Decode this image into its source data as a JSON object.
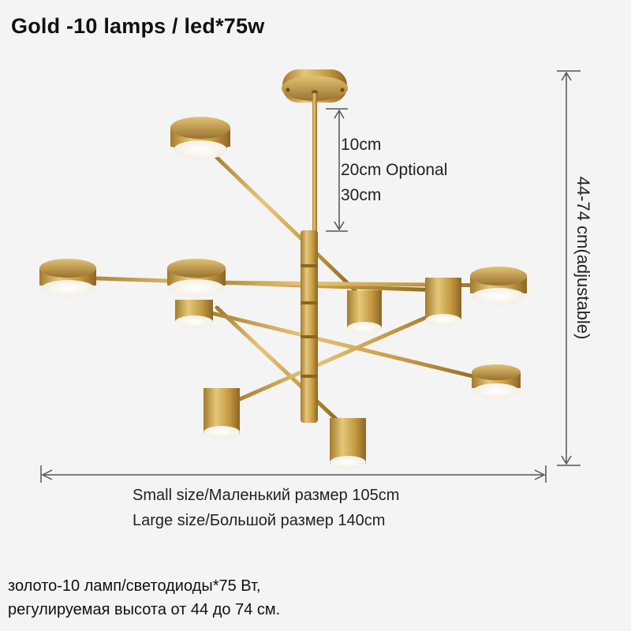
{
  "title": "Gold -10 lamps / led*75w",
  "rod_options": [
    "10cm",
    "20cm  Optional",
    "30cm"
  ],
  "height_label": "44-74 cm(adjustable)",
  "sizes": [
    "Small size/Маленький размер 105cm",
    "Large size/Большой размер   140cm"
  ],
  "caption_lines": [
    "золото-10 ламп/светодиоды*75 Вт,",
    "регулируемая высота от 44 до 74 см."
  ],
  "colors": {
    "background": "#f4f4f4",
    "brass": "#c9a24a",
    "brass_dark": "#8f6b22",
    "led": "#fffdf6"
  }
}
